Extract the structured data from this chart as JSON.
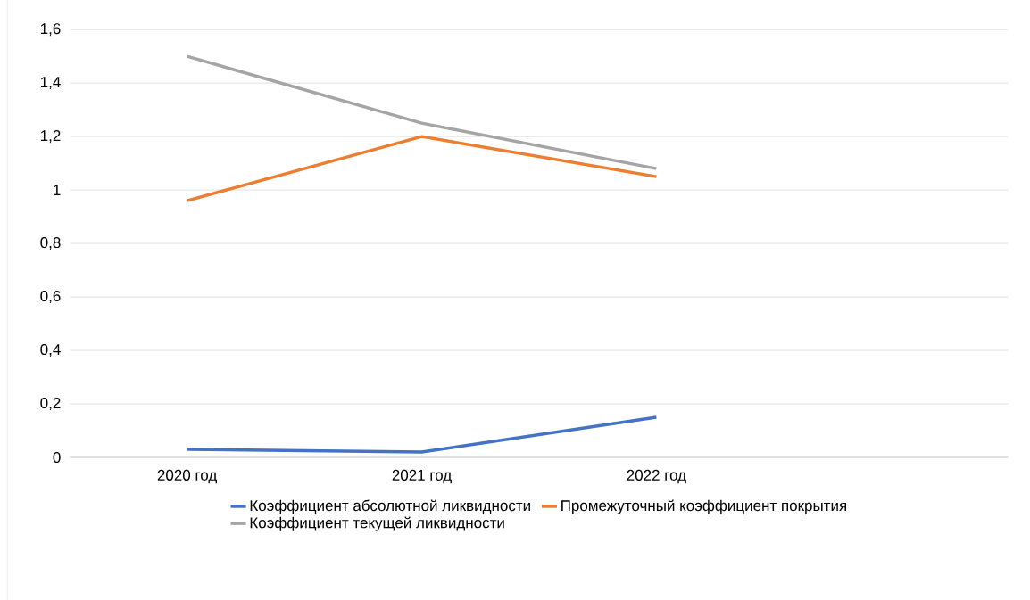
{
  "chart_data": {
    "type": "line",
    "categories": [
      "2020 год",
      "2021 год",
      "2022 год",
      null
    ],
    "series": [
      {
        "name": "Коэффициент абсолютной ликвидности",
        "color": "#4472c4",
        "values": [
          0.03,
          0.02,
          0.15,
          null
        ]
      },
      {
        "name": "Промежуточный коэффициент покрытия",
        "color": "#ed7d31",
        "values": [
          0.96,
          1.2,
          1.05,
          null
        ]
      },
      {
        "name": "Коэффициент текущей ликвидности",
        "color": "#a5a5a5",
        "values": [
          1.5,
          1.25,
          1.08,
          null
        ]
      }
    ],
    "ylim": [
      0,
      1.6
    ],
    "yticks": [
      0,
      {
        "value": 0.2,
        "label": "0,2"
      },
      {
        "value": 0.4,
        "label": "0,4"
      },
      {
        "value": 0.6,
        "label": "0,6"
      },
      {
        "value": 0.8,
        "label": "0,8"
      },
      1,
      {
        "value": 1.2,
        "label": "1,2"
      },
      {
        "value": 1.4,
        "label": "1,4"
      },
      {
        "value": 1.6,
        "label": "1,6"
      }
    ],
    "grid": "y",
    "legend": "bottom",
    "marker": "none",
    "line_style": "solid"
  }
}
